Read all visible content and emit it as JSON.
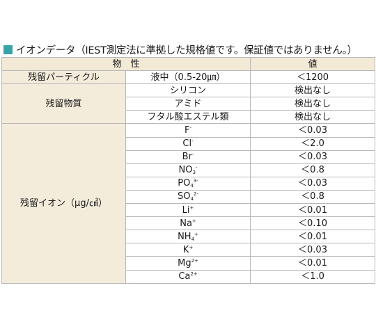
{
  "title": "イオンデータ（IEST測定法に準拠した規格値です。保証値ではありません。）",
  "headers": {
    "property": "物　性",
    "value": "値"
  },
  "particle": {
    "category": "残留パーティクル",
    "property": "液中（0.5-20㎛）",
    "value": "＜1200"
  },
  "substance": {
    "category": "残留物質",
    "rows": [
      {
        "property": "シリコン",
        "value": "検出なし"
      },
      {
        "property": "アミド",
        "value": "検出なし"
      },
      {
        "property": "フタル酸エステル類",
        "value": "検出なし"
      }
    ]
  },
  "ion": {
    "category": "残留イオン（μg/㎠）",
    "rows": [
      {
        "base": "F",
        "sup": "-",
        "sub": "",
        "sup2": "",
        "value": "＜0.03"
      },
      {
        "base": "Cl",
        "sup": "-",
        "sub": "",
        "sup2": "",
        "value": "＜2.0"
      },
      {
        "base": "Br",
        "sup": "-",
        "sub": "",
        "sup2": "",
        "value": "＜0.03"
      },
      {
        "base": "NO",
        "sup": "",
        "sub": "3",
        "sup2": "-",
        "value": "＜0.8"
      },
      {
        "base": "PO",
        "sup": "",
        "sub": "4",
        "sup2": "3-",
        "value": "＜0.03"
      },
      {
        "base": "SO",
        "sup": "",
        "sub": "4",
        "sup2": "2-",
        "value": "＜0.8"
      },
      {
        "base": "Li",
        "sup": "+",
        "sub": "",
        "sup2": "",
        "value": "＜0.01"
      },
      {
        "base": "Na",
        "sup": "+",
        "sub": "",
        "sup2": "",
        "value": "＜0.10"
      },
      {
        "base": "NH",
        "sup": "",
        "sub": "4",
        "sup2": "+",
        "value": "＜0.01"
      },
      {
        "base": "K",
        "sup": "+",
        "sub": "",
        "sup2": "",
        "value": "＜0.03"
      },
      {
        "base": "Mg",
        "sup": "2+",
        "sub": "",
        "sup2": "",
        "value": "＜0.01"
      },
      {
        "base": "Ca",
        "sup": "2+",
        "sub": "",
        "sup2": "",
        "value": "＜1.0"
      }
    ]
  }
}
